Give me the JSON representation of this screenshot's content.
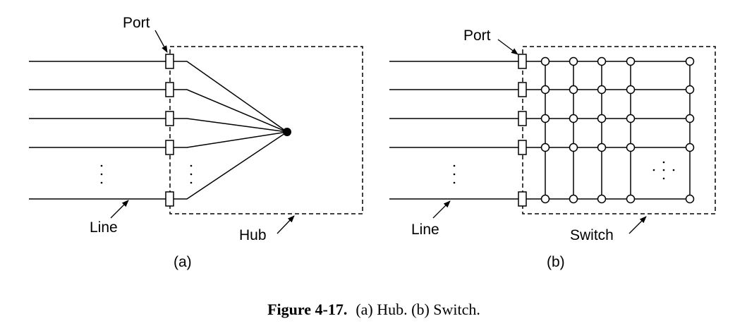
{
  "hub_panel": {
    "port_label": "Port",
    "line_label": "Line",
    "box_label": "Hub",
    "panel_label": "(a)"
  },
  "switch_panel": {
    "port_label": "Port",
    "line_label": "Line",
    "box_label": "Switch",
    "panel_label": "(b)"
  },
  "caption": {
    "number": "Figure 4-17.",
    "text": "(a) Hub. (b) Switch."
  }
}
